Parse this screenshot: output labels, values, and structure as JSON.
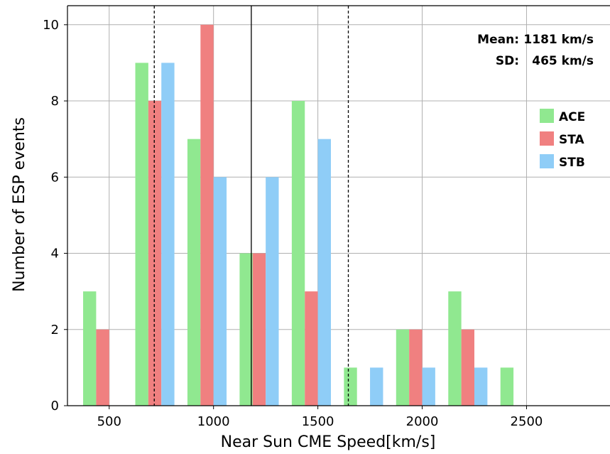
{
  "chart_data": {
    "type": "bar",
    "title": "",
    "xlabel": "Near Sun CME Speed[km/s]",
    "ylabel": "Number of ESP events",
    "xlim": [
      300,
      2900
    ],
    "ylim": [
      0,
      10.5
    ],
    "x_ticks": [
      "500",
      "1000",
      "1500",
      "2000",
      "2500"
    ],
    "y_ticks": [
      "0",
      "2",
      "4",
      "6",
      "8",
      "10"
    ],
    "grid": true,
    "bin_centers": [
      500,
      750,
      1000,
      1250,
      1500,
      1750,
      2000,
      2250,
      2500
    ],
    "series": [
      {
        "name": "ACE",
        "color": "#90e890",
        "values": [
          3,
          9,
          7,
          4,
          8,
          1,
          2,
          3,
          1
        ]
      },
      {
        "name": "STA",
        "color": "#f08080",
        "values": [
          2,
          8,
          10,
          4,
          3,
          0,
          2,
          2,
          0
        ]
      },
      {
        "name": "STB",
        "color": "#8fcdf7",
        "values": [
          0,
          9,
          6,
          6,
          7,
          1,
          1,
          1,
          0
        ]
      }
    ],
    "vertical_lines": [
      {
        "x": 1181,
        "style": "solid",
        "meaning": "mean"
      },
      {
        "x": 716,
        "style": "dashed",
        "meaning": "mean - SD"
      },
      {
        "x": 1646,
        "style": "dashed",
        "meaning": "mean + SD"
      }
    ],
    "annotations": {
      "mean_label": "Mean:",
      "mean_value": "1181 km/s",
      "sd_label": "SD:",
      "sd_value": "465 km/s"
    },
    "legend_position": "right"
  }
}
